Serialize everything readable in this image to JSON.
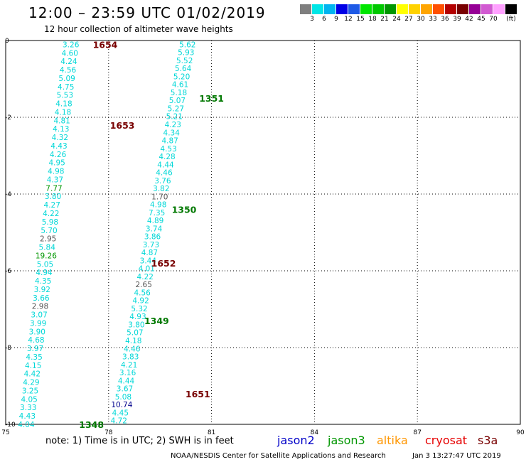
{
  "header": {
    "title": "12:00 – 23:59 UTC 01/02/2019",
    "subtitle": "12 hour collection of altimeter wave heights"
  },
  "colorbar": {
    "colors": [
      "#7f7f7f",
      "#00e6e6",
      "#00b4f0",
      "#0000e6",
      "#1e5ae6",
      "#00e600",
      "#00c800",
      "#009600",
      "#ffff00",
      "#ffd200",
      "#ffa500",
      "#ff5000",
      "#b40000",
      "#780000",
      "#960096",
      "#d25ad2",
      "#ffa0ff",
      "#000000"
    ],
    "labels": [
      "3",
      "6",
      "9",
      "12",
      "15",
      "18",
      "21",
      "24",
      "27",
      "30",
      "33",
      "36",
      "39",
      "42",
      "45",
      "70"
    ],
    "unit": "(ft)"
  },
  "axes": {
    "x_ticks": [
      "75",
      "78",
      "81",
      "84",
      "87",
      "90"
    ],
    "y_ticks": [
      "0",
      "-2",
      "-4",
      "-6",
      "-8",
      "-10"
    ],
    "x_range": [
      75,
      90
    ],
    "y_range": [
      -10,
      0
    ]
  },
  "chart_data": {
    "type": "scatter",
    "passes": [
      {
        "label": "1654",
        "lon": 77.9,
        "lat": -0.1,
        "color": "#780000"
      },
      {
        "label": "1653",
        "lon": 78.4,
        "lat": -2.2,
        "color": "#780000"
      },
      {
        "label": "1652",
        "lon": 79.6,
        "lat": -5.8,
        "color": "#780000"
      },
      {
        "label": "1651",
        "lon": 80.6,
        "lat": -9.2,
        "color": "#780000"
      },
      {
        "label": "1351",
        "lon": 81.0,
        "lat": -1.5,
        "color": "#007800"
      },
      {
        "label": "1350",
        "lon": 80.2,
        "lat": -4.4,
        "color": "#007800"
      },
      {
        "label": "1349",
        "lon": 79.4,
        "lat": -7.3,
        "color": "#007800"
      },
      {
        "label": "1348",
        "lon": 77.5,
        "lat": -10.0,
        "color": "#007800"
      }
    ],
    "tracks": [
      {
        "name": "track-1653-1654",
        "start": [
          76.9,
          -0.1
        ],
        "end": [
          75.6,
          -10.0
        ],
        "color": "#00d7d7",
        "values": [
          "3.26",
          "4.60",
          "4.24",
          "4.56",
          "5.09",
          "4.75",
          "5.53",
          "4.18",
          "4.18",
          "4.81",
          "4.13",
          "4.32",
          "4.43",
          "4.26",
          "4.95",
          "4.98",
          "4.37",
          "7.77",
          "3.80",
          "4.27",
          "4.22",
          "5.98",
          "5.70",
          "2.95",
          "5.84",
          "19.26",
          "5.05",
          "4.94",
          "4.35",
          "3.92",
          "3.66",
          "2.98",
          "3.07",
          "3.99",
          "3.90",
          "4.68",
          "3.97",
          "4.35",
          "4.15",
          "4.42",
          "4.29",
          "3.25",
          "4.05",
          "3.33",
          "4.43",
          "4.04"
        ]
      },
      {
        "name": "track-1350-1351",
        "start": [
          80.3,
          -0.1
        ],
        "end": [
          78.3,
          -9.9
        ],
        "color": "#00d7d7",
        "values": [
          "5.62",
          "5.93",
          "5.52",
          "5.64",
          "5.20",
          "4.61",
          "5.18",
          "5.07",
          "5.27",
          "5.21",
          "4.23",
          "4.34",
          "4.87",
          "4.53",
          "4.28",
          "4.44",
          "4.46",
          "3.76",
          "3.82",
          "1.70",
          "4.98",
          "7.35",
          "4.89",
          "3.74",
          "3.86",
          "3.73",
          "4.87",
          "3.44",
          "4.01",
          "4.22",
          "2.65",
          "4.56",
          "4.92",
          "5.32",
          "4.93",
          "3.80",
          "5.07",
          "4.18",
          "4.46",
          "3.83",
          "4.21",
          "3.16",
          "4.44",
          "3.67",
          "5.08",
          "10.74",
          "4.45",
          "4.72"
        ]
      }
    ],
    "gray_values": [
      "2.95",
      "2.98",
      "1.70",
      "2.65"
    ],
    "blue_values": [
      "10.74"
    ]
  },
  "footer": {
    "note": "note:  1) Time is in UTC;  2) SWH is in feet",
    "satellites": [
      {
        "name": "jason2",
        "color": "#0000c8"
      },
      {
        "name": "jason3",
        "color": "#009600"
      },
      {
        "name": "altika",
        "color": "#ff9600"
      },
      {
        "name": "cryosat",
        "color": "#e60000"
      },
      {
        "name": "s3a",
        "color": "#780000"
      }
    ],
    "credit": "NOAA/NESDIS Center for Satellite Applications and Research",
    "timestamp": "Jan  3 13:27:47 UTC 2019"
  }
}
